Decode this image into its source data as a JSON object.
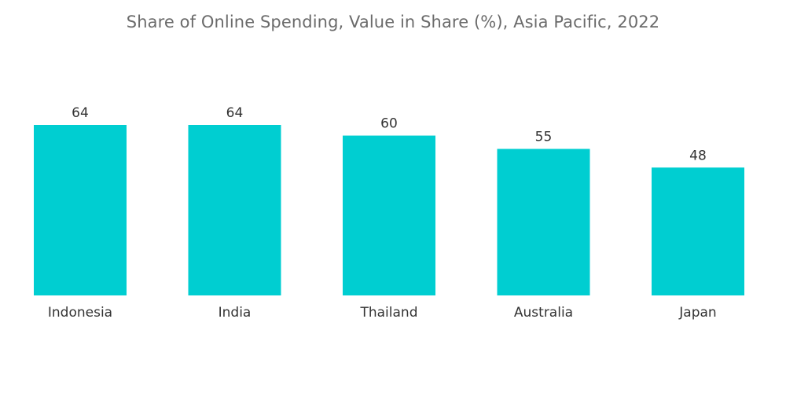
{
  "colors": {
    "bar": "#00CED1",
    "title": "#6b6b6b",
    "label": "#333333",
    "background": "#ffffff"
  },
  "chart_data": {
    "type": "bar",
    "title": "Share of Online Spending, Value in Share (%), Asia Pacific, 2022",
    "xlabel": "",
    "ylabel": "",
    "categories": [
      "Indonesia",
      "India",
      "Thailand",
      "Australia",
      "Japan"
    ],
    "values": [
      64,
      64,
      60,
      55,
      48
    ],
    "ylim": [
      0,
      64
    ],
    "grid": false,
    "legend": "none",
    "data_labels": true
  }
}
